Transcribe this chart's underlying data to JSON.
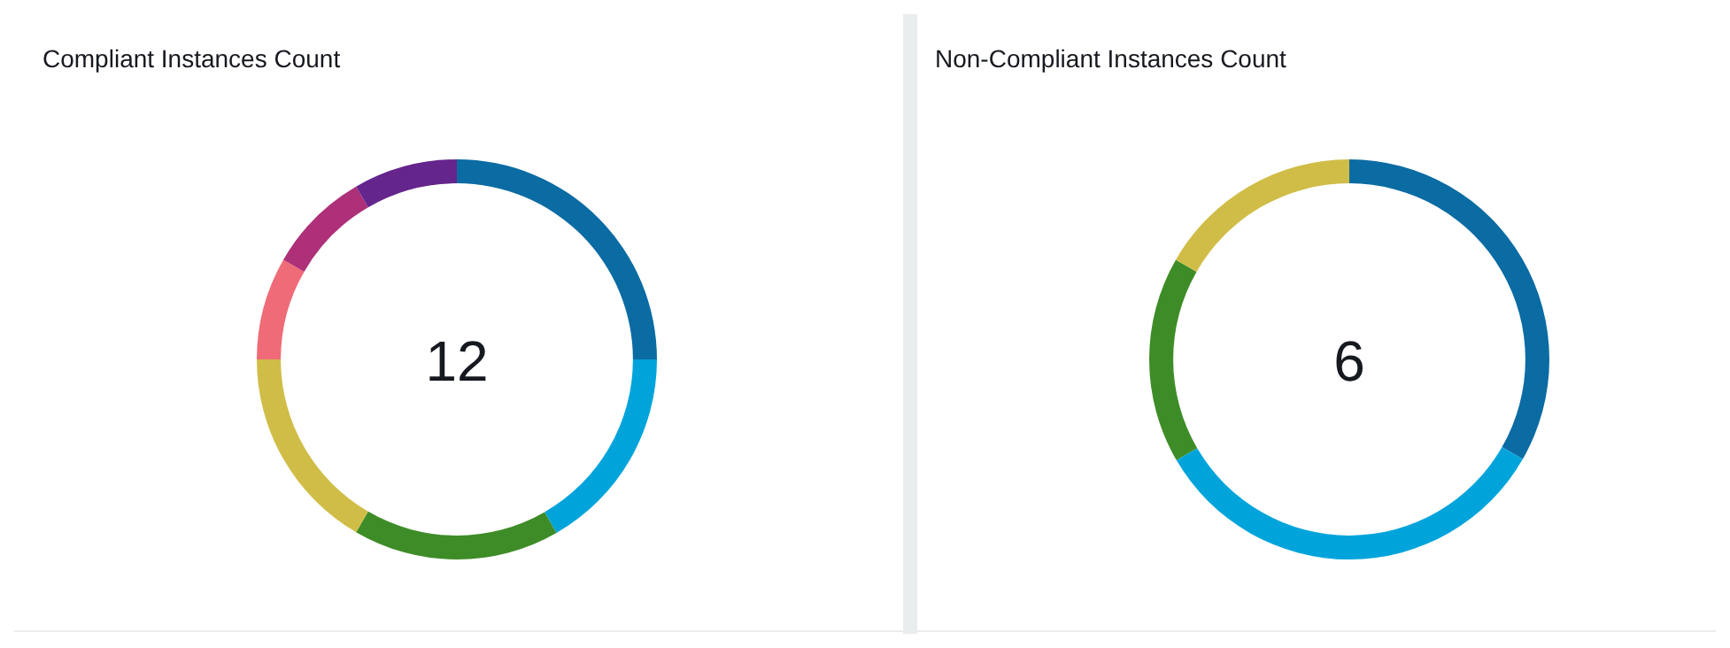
{
  "chart_data": [
    {
      "type": "donut",
      "title": "Compliant Instances Count",
      "categories": [
        null,
        null,
        null,
        null,
        null,
        null,
        null
      ],
      "values": [
        25,
        16.7,
        16.7,
        16.6,
        8.3,
        8.3,
        8.4
      ],
      "colors": [
        "#0b6ba3",
        "#00a4db",
        "#3e8c27",
        "#d0bd47",
        "#ef6b78",
        "#ad3079",
        "#64258c"
      ],
      "annotations": [
        "12"
      ]
    },
    {
      "type": "donut",
      "title": "Non-Compliant Instances Count",
      "categories": [
        null,
        null,
        null,
        null
      ],
      "values": [
        33.3,
        33.3,
        16.7,
        16.7
      ],
      "colors": [
        "#0b6ba3",
        "#00a4db",
        "#3e8c27",
        "#d0bd47"
      ],
      "annotations": [
        "6"
      ]
    }
  ]
}
